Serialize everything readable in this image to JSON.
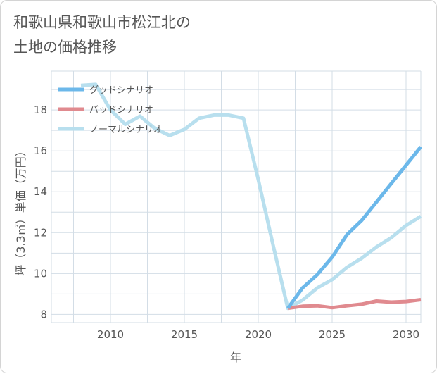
{
  "title": "和歌山県和歌山市松江北の\n土地の価格推移",
  "chart_data": {
    "type": "line",
    "xlabel": "年",
    "ylabel": "坪（3.3㎡）単価（万円）",
    "xlim": [
      2006,
      2031
    ],
    "ylim": [
      7.6,
      19.9
    ],
    "xticks": [
      2010,
      2015,
      2020,
      2025,
      2030
    ],
    "yticks": [
      8,
      10,
      12,
      14,
      16,
      18
    ],
    "grid": true,
    "legend_position": "top-left",
    "series": [
      {
        "name": "グッドシナリオ",
        "color": "#6cb8ea",
        "x": [
          2022,
          2023,
          2024,
          2025,
          2026,
          2027,
          2028,
          2029,
          2030,
          2031
        ],
        "values": [
          8.3,
          9.3,
          9.95,
          10.8,
          11.9,
          12.6,
          13.5,
          14.4,
          15.3,
          16.2
        ]
      },
      {
        "name": "バッドシナリオ",
        "color": "#e08a8f",
        "x": [
          2022,
          2023,
          2024,
          2025,
          2026,
          2027,
          2028,
          2029,
          2030,
          2031
        ],
        "values": [
          8.3,
          8.4,
          8.42,
          8.33,
          8.42,
          8.5,
          8.65,
          8.6,
          8.63,
          8.72
        ]
      },
      {
        "name": "ノーマルシナリオ",
        "color": "#b8dfee",
        "x": [
          2008,
          2009,
          2010,
          2011,
          2012,
          2013,
          2014,
          2015,
          2016,
          2017,
          2018,
          2019,
          2020,
          2021,
          2022,
          2023,
          2024,
          2025,
          2026,
          2027,
          2028,
          2029,
          2030,
          2031
        ],
        "values": [
          19.2,
          19.25,
          18.0,
          17.3,
          17.7,
          17.1,
          16.75,
          17.05,
          17.6,
          17.75,
          17.75,
          17.6,
          14.6,
          11.4,
          8.3,
          8.7,
          9.3,
          9.7,
          10.3,
          10.75,
          11.3,
          11.75,
          12.35,
          12.8
        ]
      }
    ]
  }
}
